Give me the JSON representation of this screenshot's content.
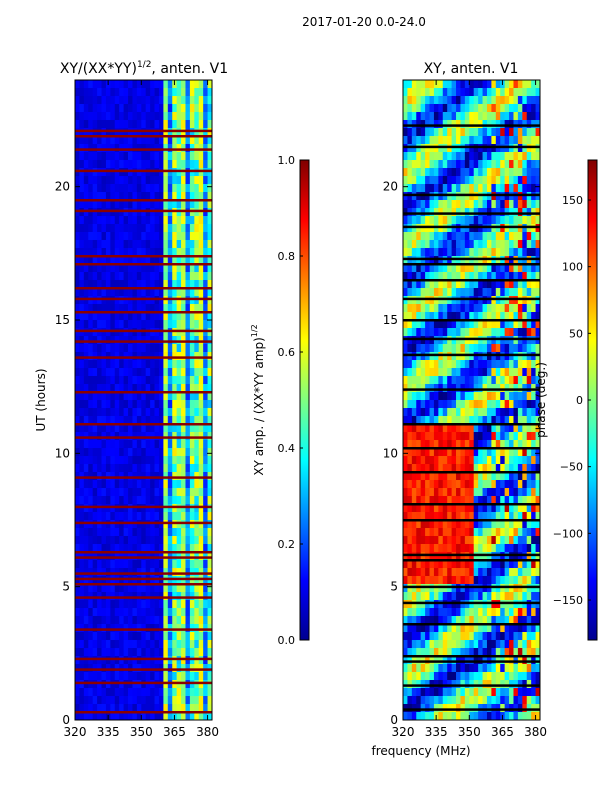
{
  "chart_data": {
    "type": "heatmap",
    "suptitle": "2017-01-20 0.0-24.0",
    "shared_xlabel": "frequency (MHz)",
    "panels": [
      {
        "title_main": "XY/(XX*YY)",
        "title_sup": "1/2",
        "title_tail": ", anten. V1",
        "ylabel": "UT (hours)",
        "xlim": [
          320,
          382
        ],
        "ylim": [
          0,
          24
        ],
        "xticks": [
          "320",
          "335",
          "350",
          "365",
          "380"
        ],
        "xtick_values": [
          320,
          335,
          350,
          365,
          380
        ],
        "yticks": [
          "0",
          "5",
          "10",
          "15",
          "20"
        ],
        "ytick_values": [
          0,
          5,
          10,
          15,
          20
        ],
        "colormap": "jet",
        "colorbar": {
          "label_main": "XY amp. / (XX*YY amp)",
          "label_sup": "1/2",
          "range": [
            0,
            1
          ],
          "ticks": [
            "0.0",
            "0.2",
            "0.4",
            "0.6",
            "0.8",
            "1.0"
          ],
          "tick_values": [
            0.0,
            0.2,
            0.4,
            0.6,
            0.8,
            1.0
          ]
        },
        "flagged_ut_hours": [
          0.3,
          1.4,
          1.9,
          2.3,
          3.4,
          4.6,
          5.1,
          5.3,
          5.5,
          6.1,
          6.3,
          7.4,
          8.0,
          9.1,
          10.6,
          11.1,
          12.3,
          13.6,
          14.2,
          14.6,
          15.3,
          15.8,
          16.2,
          17.1,
          17.4,
          19.1,
          19.5,
          20.6,
          21.4,
          21.9,
          22.1
        ]
      },
      {
        "title_main": "XY, anten. V1",
        "ylabel": "",
        "xlim": [
          320,
          382
        ],
        "ylim": [
          0,
          24
        ],
        "xticks": [
          "320",
          "335",
          "350",
          "365",
          "380"
        ],
        "xtick_values": [
          320,
          335,
          350,
          365,
          380
        ],
        "yticks": [
          "0",
          "5",
          "10",
          "15",
          "20"
        ],
        "ytick_values": [
          0,
          5,
          10,
          15,
          20
        ],
        "colormap": "jet",
        "colorbar": {
          "label": "phase (deg.)",
          "range": [
            -180,
            180
          ],
          "ticks": [
            "−150",
            "−100",
            "−50",
            "0",
            "50",
            "100",
            "150"
          ],
          "tick_values": [
            -150,
            -100,
            -50,
            0,
            50,
            100,
            150
          ]
        },
        "flagged_ut_hours": [
          0.4,
          1.3,
          2.2,
          2.4,
          3.6,
          4.4,
          5.0,
          6.0,
          6.2,
          7.5,
          8.1,
          9.3,
          10.2,
          11.1,
          12.4,
          13.7,
          14.3,
          15.0,
          15.8,
          16.5,
          17.1,
          17.3,
          18.5,
          19.0,
          19.7,
          21.5,
          22.3
        ]
      }
    ]
  }
}
